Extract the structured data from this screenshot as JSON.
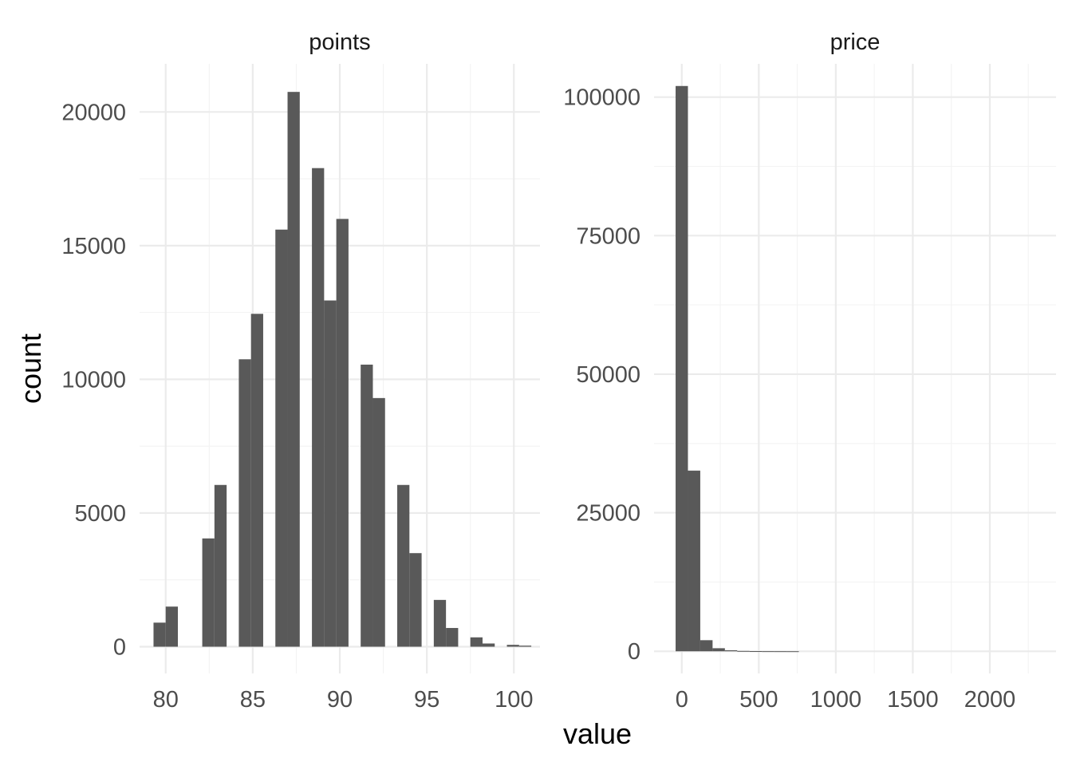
{
  "chart_data": {
    "type": "bar",
    "subtype": "histogram-faceted",
    "xlabel": "value",
    "ylabel": "count",
    "grid": true,
    "facets": [
      {
        "title": "points",
        "xlim": [
          78.5,
          101.5
        ],
        "ylim": [
          -1000,
          21800
        ],
        "x_breaks": [
          80,
          85,
          90,
          95,
          100
        ],
        "x_minor_breaks": [
          82.5,
          87.5,
          92.5,
          97.5
        ],
        "y_breaks": [
          0,
          5000,
          10000,
          15000,
          20000
        ],
        "y_minor_breaks": [
          2500,
          7500,
          12500,
          17500
        ],
        "bin_width": 0.7,
        "bins": [
          {
            "x": 79.65,
            "count": 900
          },
          {
            "x": 80.35,
            "count": 1500
          },
          {
            "x": 82.45,
            "count": 4050
          },
          {
            "x": 83.15,
            "count": 6050
          },
          {
            "x": 84.55,
            "count": 10750
          },
          {
            "x": 85.25,
            "count": 12450
          },
          {
            "x": 86.65,
            "count": 15600
          },
          {
            "x": 87.35,
            "count": 20750
          },
          {
            "x": 88.75,
            "count": 17900
          },
          {
            "x": 89.45,
            "count": 12950
          },
          {
            "x": 90.15,
            "count": 16000
          },
          {
            "x": 91.55,
            "count": 10550
          },
          {
            "x": 92.25,
            "count": 9300
          },
          {
            "x": 93.65,
            "count": 6050
          },
          {
            "x": 94.35,
            "count": 3500
          },
          {
            "x": 95.75,
            "count": 1750
          },
          {
            "x": 96.45,
            "count": 700
          },
          {
            "x": 97.85,
            "count": 350
          },
          {
            "x": 98.55,
            "count": 120
          },
          {
            "x": 99.95,
            "count": 70
          },
          {
            "x": 100.65,
            "count": 40
          }
        ]
      },
      {
        "title": "price",
        "xlim": [
          -180,
          2430
        ],
        "ylim": [
          -4000,
          106000
        ],
        "x_breaks": [
          0,
          500,
          1000,
          1500,
          2000
        ],
        "x_minor_breaks": [
          250,
          750,
          1250,
          1750,
          2250
        ],
        "y_breaks": [
          0,
          25000,
          50000,
          75000,
          100000
        ],
        "y_minor_breaks": [
          12500,
          37500,
          62500,
          87500
        ],
        "bin_width": 80,
        "bins": [
          {
            "x": 0,
            "count": 102000
          },
          {
            "x": 80,
            "count": 32600
          },
          {
            "x": 160,
            "count": 2000
          },
          {
            "x": 240,
            "count": 550
          },
          {
            "x": 320,
            "count": 180
          },
          {
            "x": 400,
            "count": 60
          },
          {
            "x": 480,
            "count": 30
          },
          {
            "x": 560,
            "count": 15
          },
          {
            "x": 640,
            "count": 10
          },
          {
            "x": 720,
            "count": 5
          }
        ]
      }
    ]
  }
}
